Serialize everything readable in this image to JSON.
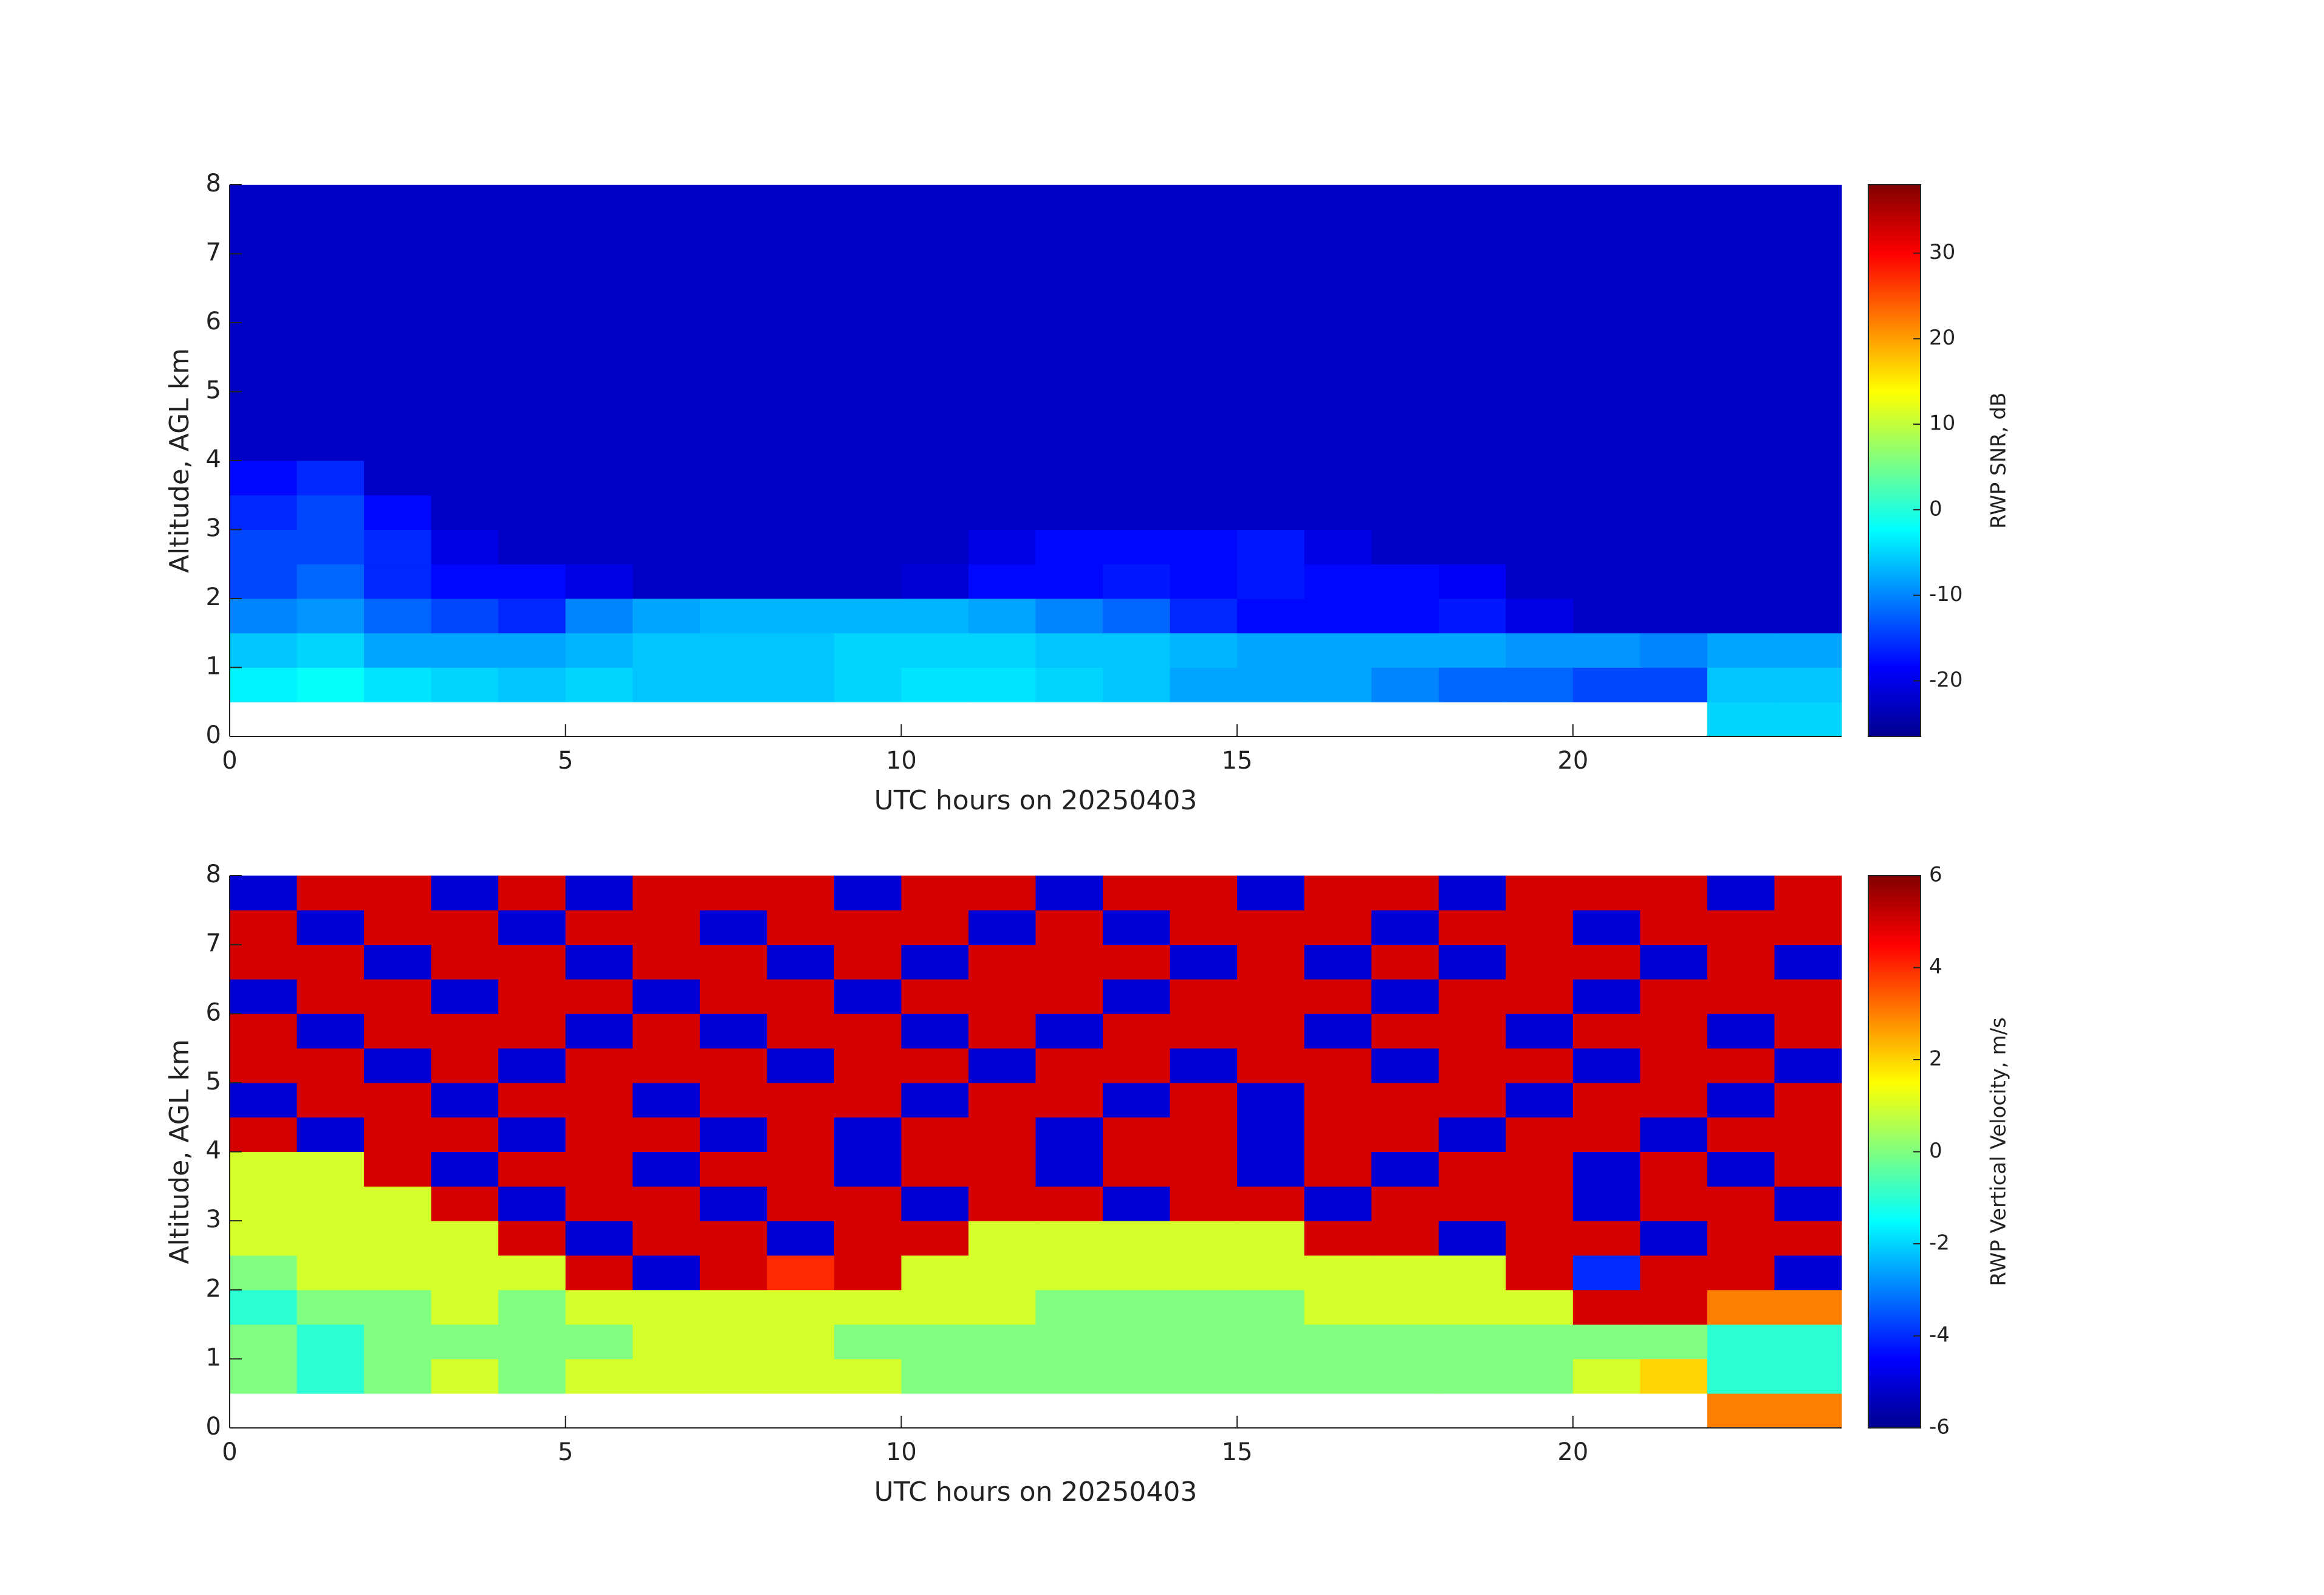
{
  "chart_data": [
    {
      "type": "heatmap",
      "colormap": "jet",
      "xlabel": "UTC hours on 20250403",
      "ylabel": "Altitude, AGL km",
      "colorbar_label": "RWP SNR, dB",
      "xlim": [
        0,
        24
      ],
      "ylim": [
        0,
        8
      ],
      "xticks": [
        0,
        5,
        10,
        15,
        20
      ],
      "yticks": [
        0,
        1,
        2,
        3,
        4,
        5,
        6,
        7,
        8
      ],
      "clim": [
        -26.5,
        38
      ],
      "cticks": [
        -20,
        -10,
        0,
        10,
        20,
        30
      ],
      "x_edges": [
        0,
        1,
        2,
        3,
        4,
        5,
        6,
        7,
        8,
        9,
        10,
        11,
        12,
        13,
        14,
        15,
        16,
        17,
        18,
        19,
        20,
        21,
        22,
        23,
        24
      ],
      "y_edges": [
        0,
        0.5,
        1,
        1.5,
        2,
        2.5,
        3,
        3.5,
        4,
        4.5,
        5,
        5.5,
        6,
        6.5,
        7,
        7.5,
        8
      ],
      "values": [
        [
          null,
          null,
          null,
          null,
          null,
          null,
          null,
          null,
          null,
          null,
          null,
          null,
          null,
          null,
          null,
          null,
          null,
          null,
          null,
          null,
          null,
          null,
          -5,
          -5
        ],
        [
          -3,
          -2,
          -4,
          -5,
          -6,
          -5,
          -6,
          -6,
          -6,
          -5,
          -4,
          -4,
          -5,
          -6,
          -8,
          -8,
          -8,
          -10,
          -12,
          -12,
          -14,
          -14,
          -6,
          -6
        ],
        [
          -6,
          -5,
          -8,
          -8,
          -8,
          -7,
          -6,
          -6,
          -6,
          -5,
          -5,
          -5,
          -6,
          -6,
          -7,
          -8,
          -8,
          -8,
          -8,
          -9,
          -9,
          -10,
          -8,
          -8
        ],
        [
          -10,
          -9,
          -12,
          -14,
          -16,
          -10,
          -8,
          -7,
          -7,
          -7,
          -7,
          -8,
          -10,
          -12,
          -16,
          -18,
          -18,
          -18,
          -17,
          -20,
          -22,
          -22,
          -22,
          -22
        ],
        [
          -14,
          -12,
          -16,
          -18,
          -18,
          -20,
          -22,
          -22,
          -22,
          -22,
          -21,
          -18,
          -18,
          -17,
          -18,
          -17,
          -18,
          -18,
          -19,
          -22,
          -22,
          -22,
          -22,
          -22
        ],
        [
          -14,
          -14,
          -16,
          -20,
          -22,
          -22,
          -22,
          -22,
          -22,
          -22,
          -22,
          -20,
          -18,
          -18,
          -18,
          -17,
          -20,
          -22,
          -22,
          -22,
          -22,
          -22,
          -22,
          -22
        ],
        [
          -16,
          -14,
          -18,
          -22,
          -22,
          -22,
          -22,
          -22,
          -22,
          -22,
          -22,
          -22,
          -22,
          -22,
          -22,
          -22,
          -22,
          -22,
          -22,
          -22,
          -22,
          -22,
          -22,
          -22
        ],
        [
          -18,
          -16,
          -22,
          -22,
          -22,
          -22,
          -22,
          -22,
          -22,
          -22,
          -22,
          -22,
          -22,
          -22,
          -22,
          -22,
          -22,
          -22,
          -22,
          -22,
          -22,
          -22,
          -22,
          -22
        ],
        [
          -22,
          -22,
          -22,
          -22,
          -22,
          -22,
          -22,
          -22,
          -22,
          -22,
          -22,
          -22,
          -22,
          -22,
          -22,
          -22,
          -22,
          -22,
          -22,
          -22,
          -22,
          -22,
          -22,
          -22
        ],
        [
          -22,
          -22,
          -22,
          -22,
          -22,
          -22,
          -22,
          -22,
          -22,
          -22,
          -22,
          -22,
          -22,
          -22,
          -22,
          -22,
          -22,
          -22,
          -22,
          -22,
          -22,
          -22,
          -22,
          -22
        ],
        [
          -22,
          -22,
          -22,
          -22,
          -22,
          -22,
          -22,
          -22,
          -22,
          -22,
          -22,
          -22,
          -22,
          -22,
          -22,
          -22,
          -22,
          -22,
          -22,
          -22,
          -22,
          -22,
          -22,
          -22
        ],
        [
          -22,
          -22,
          -22,
          -22,
          -22,
          -22,
          -22,
          -22,
          -22,
          -22,
          -22,
          -22,
          -22,
          -22,
          -22,
          -22,
          -22,
          -22,
          -22,
          -22,
          -22,
          -22,
          -22,
          -22
        ],
        [
          -22,
          -22,
          -22,
          -22,
          -22,
          -22,
          -22,
          -22,
          -22,
          -22,
          -22,
          -22,
          -22,
          -22,
          -22,
          -22,
          -22,
          -22,
          -22,
          -22,
          -22,
          -22,
          -22,
          -22
        ],
        [
          -22,
          -22,
          -22,
          -22,
          -22,
          -22,
          -22,
          -22,
          -22,
          -22,
          -22,
          -22,
          -22,
          -22,
          -22,
          -22,
          -22,
          -22,
          -22,
          -22,
          -22,
          -22,
          -22,
          -22
        ],
        [
          -22,
          -22,
          -22,
          -22,
          -22,
          -22,
          -22,
          -22,
          -22,
          -22,
          -22,
          -22,
          -22,
          -22,
          -22,
          -22,
          -22,
          -22,
          -22,
          -22,
          -22,
          -22,
          -22,
          -22
        ],
        [
          -22,
          -22,
          -22,
          -22,
          -22,
          -22,
          -22,
          -22,
          -22,
          -22,
          -22,
          -22,
          -22,
          -22,
          -22,
          -22,
          -22,
          -22,
          -22,
          -22,
          -22,
          -22,
          -22,
          -22
        ]
      ]
    },
    {
      "type": "heatmap",
      "colormap": "jet",
      "xlabel": "UTC hours on 20250403",
      "ylabel": "Altitude, AGL km",
      "colorbar_label": "RWP Vertical Velocity, m/s",
      "xlim": [
        0,
        24
      ],
      "ylim": [
        0,
        8
      ],
      "xticks": [
        0,
        5,
        10,
        15,
        20
      ],
      "yticks": [
        0,
        1,
        2,
        3,
        4,
        5,
        6,
        7,
        8
      ],
      "clim": [
        -6,
        6
      ],
      "cticks": [
        -6,
        -4,
        -2,
        0,
        2,
        4,
        6
      ],
      "x_edges": [
        0,
        1,
        2,
        3,
        4,
        5,
        6,
        7,
        8,
        9,
        10,
        11,
        12,
        13,
        14,
        15,
        16,
        17,
        18,
        19,
        20,
        21,
        22,
        23,
        24
      ],
      "y_edges": [
        0,
        0.5,
        1,
        1.5,
        2,
        2.5,
        3,
        3.5,
        4,
        4.5,
        5,
        5.5,
        6,
        6.5,
        7,
        7.5,
        8
      ],
      "values": [
        [
          null,
          null,
          null,
          null,
          null,
          null,
          null,
          null,
          null,
          null,
          null,
          null,
          null,
          null,
          null,
          null,
          null,
          null,
          null,
          null,
          null,
          null,
          3,
          3
        ],
        [
          0,
          -1,
          0,
          1,
          0,
          1,
          1,
          1,
          1,
          1,
          0,
          0,
          0,
          0,
          0,
          0,
          0,
          0,
          0,
          0,
          1,
          2,
          -1,
          -1
        ],
        [
          0,
          -1,
          0,
          0,
          0,
          0,
          1,
          1,
          1,
          0,
          0,
          0,
          0,
          0,
          0,
          0,
          0,
          0,
          0,
          0,
          0,
          0,
          -1,
          -1
        ],
        [
          -1,
          0,
          0,
          1,
          0,
          1,
          1,
          1,
          1,
          1,
          1,
          1,
          0,
          0,
          0,
          0,
          1,
          1,
          1,
          1,
          5,
          5,
          3,
          3
        ],
        [
          0,
          1,
          1,
          1,
          1,
          5,
          -5,
          5,
          4,
          5,
          1,
          1,
          1,
          1,
          1,
          1,
          1,
          1,
          1,
          5,
          -4,
          5,
          5,
          -5
        ],
        [
          1,
          1,
          1,
          1,
          5,
          -5,
          5,
          5,
          -5,
          5,
          5,
          1,
          1,
          1,
          1,
          1,
          5,
          5,
          -5,
          5,
          5,
          -5,
          5,
          5
        ],
        [
          1,
          1,
          1,
          5,
          -5,
          5,
          5,
          -5,
          5,
          5,
          -5,
          5,
          5,
          -5,
          5,
          5,
          -5,
          5,
          5,
          5,
          -5,
          5,
          5,
          -5
        ],
        [
          1,
          1,
          5,
          -5,
          5,
          5,
          -5,
          5,
          5,
          -5,
          5,
          5,
          -5,
          5,
          5,
          -5,
          5,
          -5,
          5,
          5,
          -5,
          5,
          -5,
          5
        ],
        [
          5,
          -5,
          5,
          5,
          -5,
          5,
          5,
          -5,
          5,
          -5,
          5,
          5,
          -5,
          5,
          5,
          -5,
          5,
          5,
          -5,
          5,
          5,
          -5,
          5,
          5
        ],
        [
          -5,
          5,
          5,
          -5,
          5,
          5,
          -5,
          5,
          5,
          5,
          -5,
          5,
          5,
          -5,
          5,
          -5,
          5,
          5,
          5,
          -5,
          5,
          5,
          -5,
          5
        ],
        [
          5,
          5,
          -5,
          5,
          -5,
          5,
          5,
          5,
          -5,
          5,
          5,
          -5,
          5,
          5,
          -5,
          5,
          5,
          -5,
          5,
          5,
          -5,
          5,
          5,
          -5
        ],
        [
          5,
          -5,
          5,
          5,
          5,
          -5,
          5,
          -5,
          5,
          5,
          -5,
          5,
          -5,
          5,
          5,
          5,
          -5,
          5,
          5,
          -5,
          5,
          5,
          -5,
          5
        ],
        [
          -5,
          5,
          5,
          -5,
          5,
          5,
          -5,
          5,
          5,
          -5,
          5,
          5,
          5,
          -5,
          5,
          5,
          5,
          -5,
          5,
          5,
          -5,
          5,
          5,
          5
        ],
        [
          5,
          5,
          -5,
          5,
          5,
          -5,
          5,
          5,
          -5,
          5,
          -5,
          5,
          5,
          5,
          -5,
          5,
          -5,
          5,
          -5,
          5,
          5,
          -5,
          5,
          -5
        ],
        [
          5,
          -5,
          5,
          5,
          -5,
          5,
          5,
          -5,
          5,
          5,
          5,
          -5,
          5,
          -5,
          5,
          5,
          5,
          -5,
          5,
          5,
          -5,
          5,
          5,
          5
        ],
        [
          -5,
          5,
          5,
          -5,
          5,
          -5,
          5,
          5,
          5,
          -5,
          5,
          5,
          -5,
          5,
          5,
          -5,
          5,
          5,
          -5,
          5,
          5,
          5,
          -5,
          5
        ]
      ]
    }
  ]
}
